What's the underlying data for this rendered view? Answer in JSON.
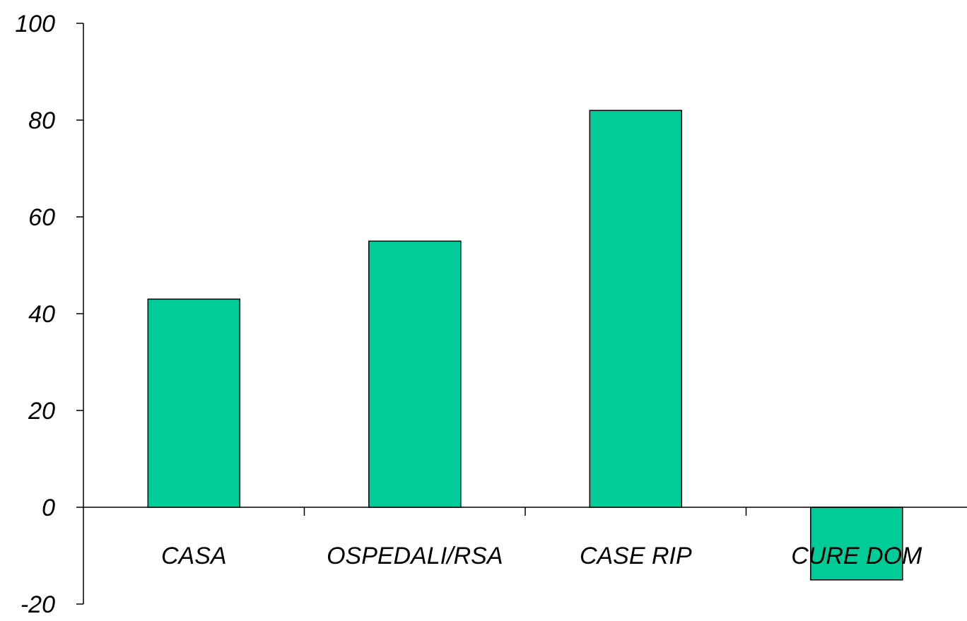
{
  "chart_data": {
    "type": "bar",
    "categories": [
      "CASA",
      "OSPEDALI/RSA",
      "CASE RIP",
      "CURE DOM"
    ],
    "values": [
      43,
      55,
      82,
      -15
    ],
    "title": "",
    "xlabel": "",
    "ylabel": "",
    "ylim": [
      -20,
      100
    ],
    "yticks": [
      "100",
      "80",
      "60",
      "40",
      "20",
      "0",
      "-20"
    ],
    "grid": false,
    "legend": "none",
    "bar_color": "#00CC99",
    "bar_edge_color": "#000000"
  }
}
